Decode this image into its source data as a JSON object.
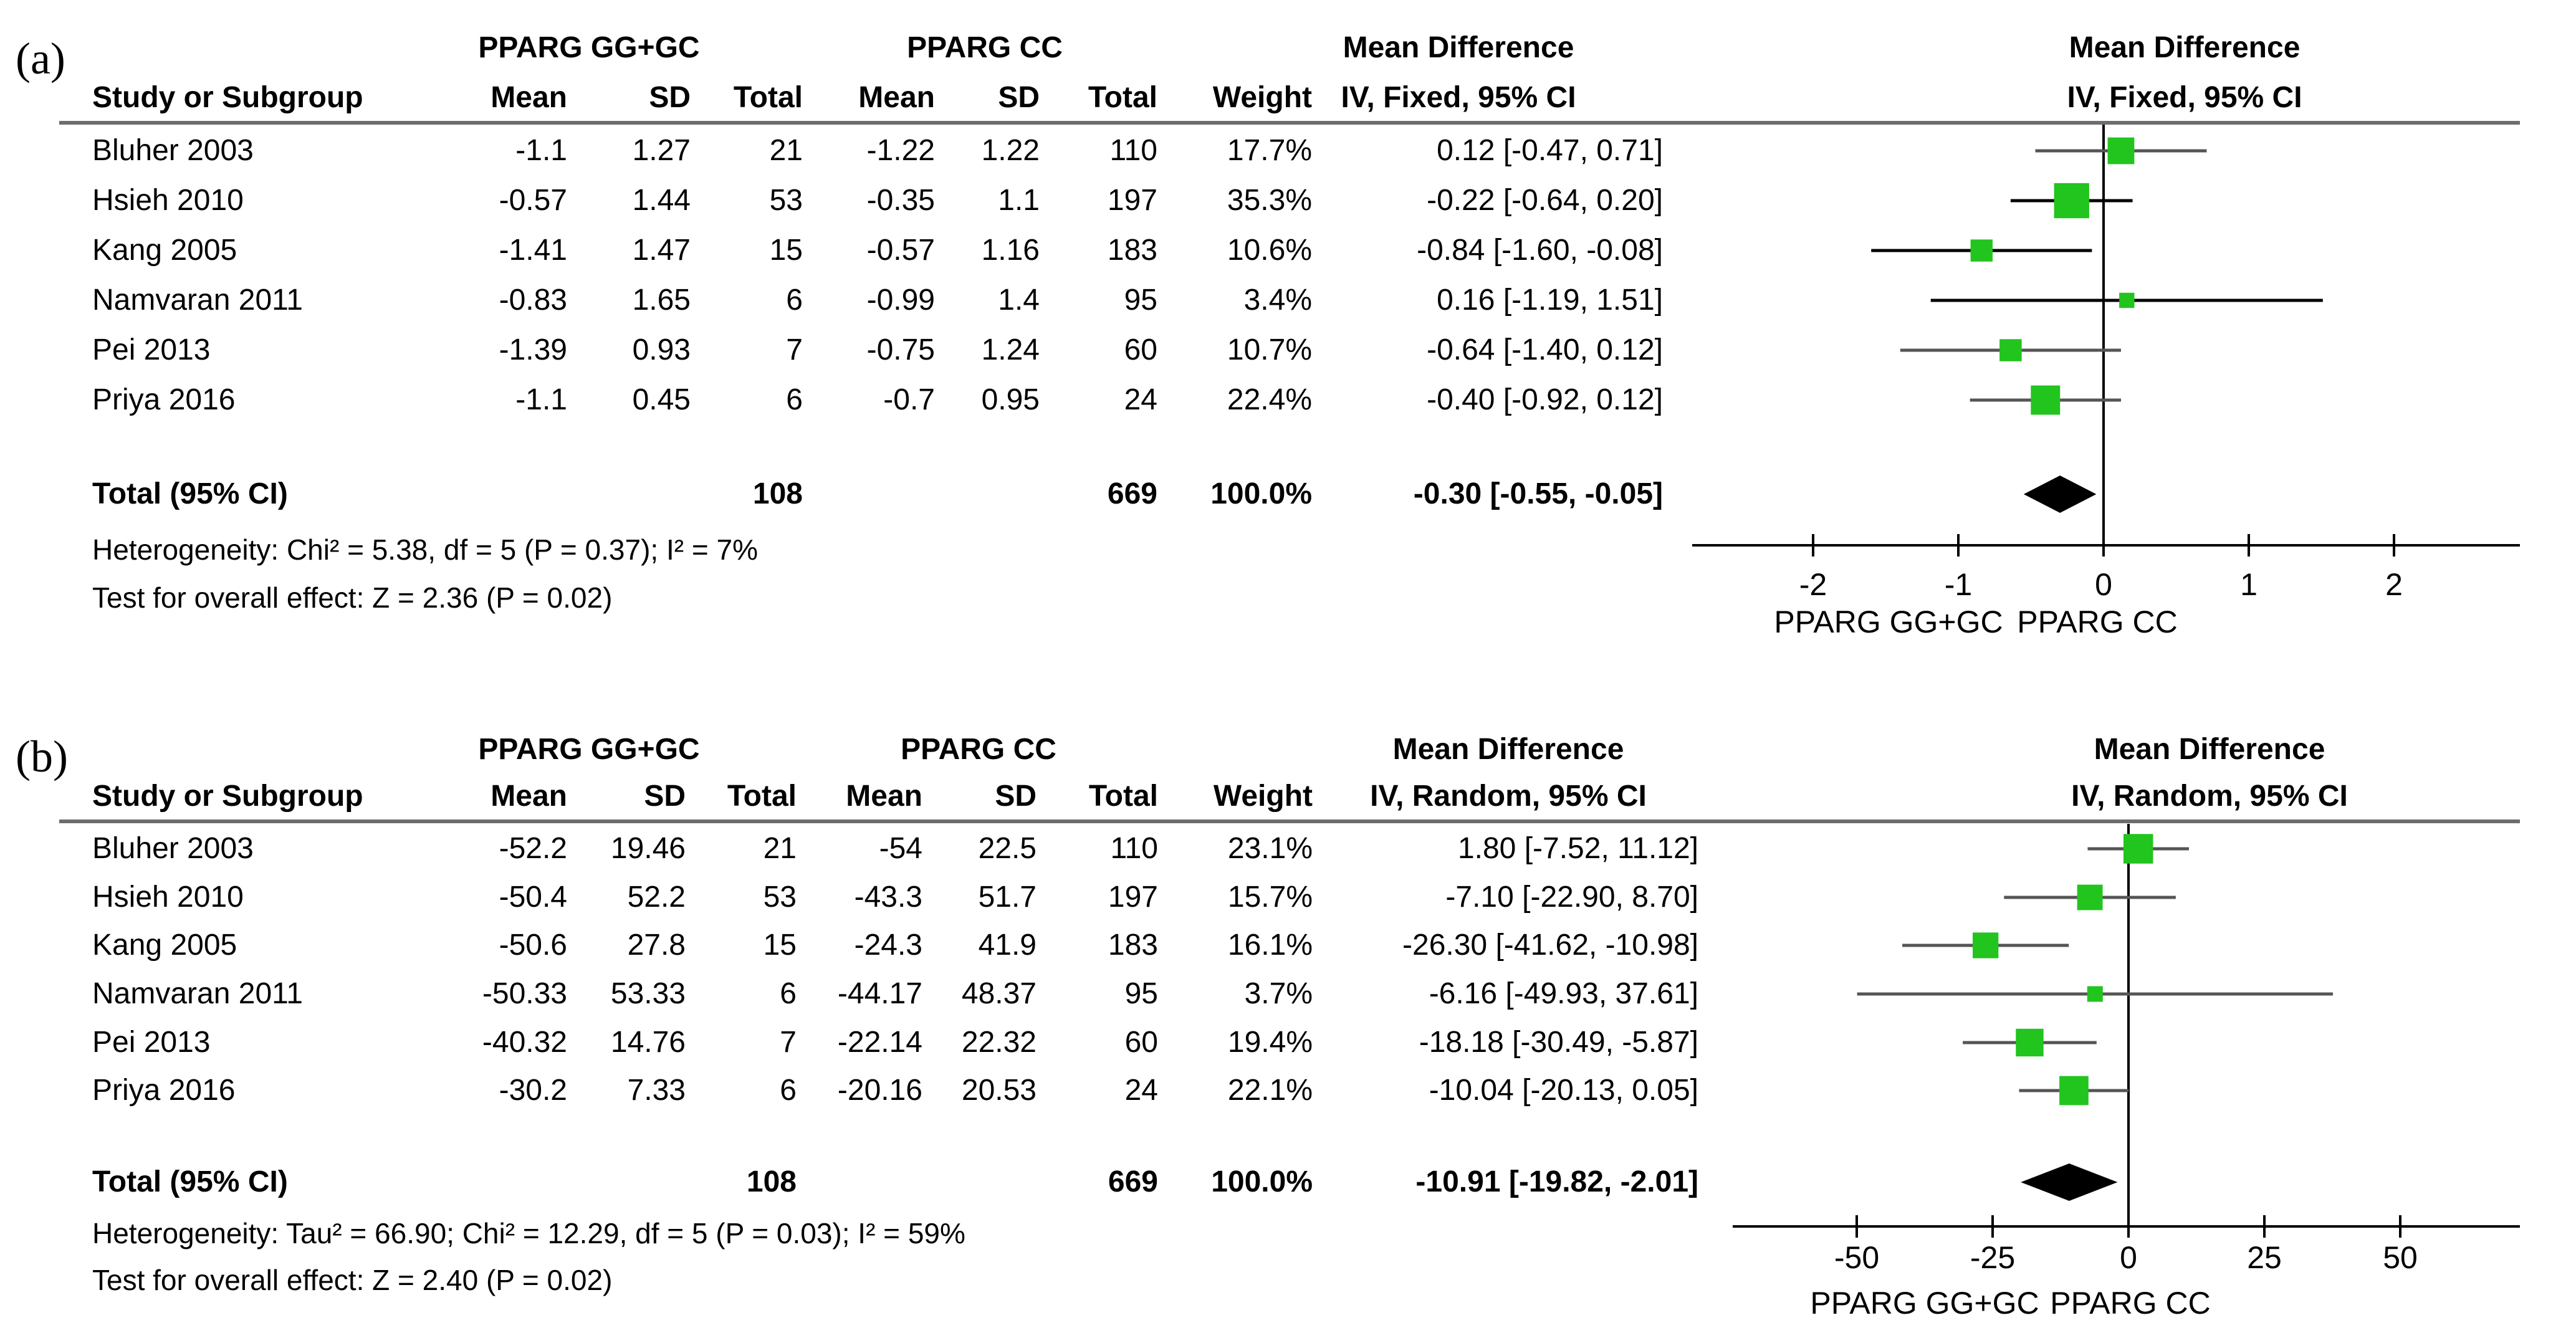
{
  "panels": [
    {
      "label": "(a)",
      "group1": "PPARG GG+GC",
      "group2": "PPARG CC",
      "headers": {
        "study": "Study or Subgroup",
        "mean": "Mean",
        "sd": "SD",
        "total": "Total",
        "weight": "Weight",
        "effect_title": "Mean Difference",
        "effect_method": "IV, Fixed, 95% CI",
        "plot_title": "Mean Difference",
        "plot_method": "IV, Fixed, 95% CI"
      },
      "studies": [
        {
          "name": "Bluher 2003",
          "m1": "-1.1",
          "sd1": "1.27",
          "n1": "21",
          "m2": "-1.22",
          "sd2": "1.22",
          "n2": "110",
          "weight": "17.7%",
          "ci": "0.12 [-0.47, 0.71]"
        },
        {
          "name": "Hsieh 2010",
          "m1": "-0.57",
          "sd1": "1.44",
          "n1": "53",
          "m2": "-0.35",
          "sd2": "1.1",
          "n2": "197",
          "weight": "35.3%",
          "ci": "-0.22 [-0.64, 0.20]"
        },
        {
          "name": "Kang 2005",
          "m1": "-1.41",
          "sd1": "1.47",
          "n1": "15",
          "m2": "-0.57",
          "sd2": "1.16",
          "n2": "183",
          "weight": "10.6%",
          "ci": "-0.84 [-1.60, -0.08]"
        },
        {
          "name": "Namvaran 2011",
          "m1": "-0.83",
          "sd1": "1.65",
          "n1": "6",
          "m2": "-0.99",
          "sd2": "1.4",
          "n2": "95",
          "weight": "3.4%",
          "ci": "0.16 [-1.19, 1.51]"
        },
        {
          "name": "Pei 2013",
          "m1": "-1.39",
          "sd1": "0.93",
          "n1": "7",
          "m2": "-0.75",
          "sd2": "1.24",
          "n2": "60",
          "weight": "10.7%",
          "ci": "-0.64 [-1.40, 0.12]"
        },
        {
          "name": "Priya 2016",
          "m1": "-1.1",
          "sd1": "0.45",
          "n1": "6",
          "m2": "-0.7",
          "sd2": "0.95",
          "n2": "24",
          "weight": "22.4%",
          "ci": "-0.40 [-0.92, 0.12]"
        }
      ],
      "total": {
        "label": "Total (95% CI)",
        "n1": "108",
        "n2": "669",
        "weight": "100.0%",
        "ci": "-0.30 [-0.55, -0.05]"
      },
      "heterogeneity": "Heterogeneity: Chi² = 5.38, df = 5 (P = 0.37); I² = 7%",
      "overall": "Test for overall effect: Z = 2.36 (P = 0.02)",
      "favours_left": "PPARG GG+GC",
      "favours_right": "PPARG CC"
    },
    {
      "label": "(b)",
      "group1": "PPARG GG+GC",
      "group2": "PPARG CC",
      "headers": {
        "study": "Study or Subgroup",
        "mean": "Mean",
        "sd": "SD",
        "total": "Total",
        "weight": "Weight",
        "effect_title": "Mean Difference",
        "effect_method": "IV, Random, 95% CI",
        "plot_title": "Mean Difference",
        "plot_method": "IV, Random, 95% CI"
      },
      "studies": [
        {
          "name": "Bluher 2003",
          "m1": "-52.2",
          "sd1": "19.46",
          "n1": "21",
          "m2": "-54",
          "sd2": "22.5",
          "n2": "110",
          "weight": "23.1%",
          "ci": "1.80 [-7.52, 11.12]"
        },
        {
          "name": "Hsieh 2010",
          "m1": "-50.4",
          "sd1": "52.2",
          "n1": "53",
          "m2": "-43.3",
          "sd2": "51.7",
          "n2": "197",
          "weight": "15.7%",
          "ci": "-7.10 [-22.90, 8.70]"
        },
        {
          "name": "Kang 2005",
          "m1": "-50.6",
          "sd1": "27.8",
          "n1": "15",
          "m2": "-24.3",
          "sd2": "41.9",
          "n2": "183",
          "weight": "16.1%",
          "ci": "-26.30 [-41.62, -10.98]"
        },
        {
          "name": "Namvaran 2011",
          "m1": "-50.33",
          "sd1": "53.33",
          "n1": "6",
          "m2": "-44.17",
          "sd2": "48.37",
          "n2": "95",
          "weight": "3.7%",
          "ci": "-6.16 [-49.93, 37.61]"
        },
        {
          "name": "Pei 2013",
          "m1": "-40.32",
          "sd1": "14.76",
          "n1": "7",
          "m2": "-22.14",
          "sd2": "22.32",
          "n2": "60",
          "weight": "19.4%",
          "ci": "-18.18 [-30.49, -5.87]"
        },
        {
          "name": "Priya 2016",
          "m1": "-30.2",
          "sd1": "7.33",
          "n1": "6",
          "m2": "-20.16",
          "sd2": "20.53",
          "n2": "24",
          "weight": "22.1%",
          "ci": "-10.04 [-20.13, 0.05]"
        }
      ],
      "total": {
        "label": "Total (95% CI)",
        "n1": "108",
        "n2": "669",
        "weight": "100.0%",
        "ci": "-10.91 [-19.82, -2.01]"
      },
      "heterogeneity": "Heterogeneity: Tau² = 66.90; Chi² = 12.29, df = 5 (P = 0.03); I² = 59%",
      "overall": "Test for overall effect: Z = 2.40 (P = 0.02)",
      "favours_left": "PPARG GG+GC",
      "favours_right": "PPARG CC"
    }
  ],
  "colors": {
    "marker": "#22c41e",
    "line_black": "#000000",
    "line_gray": "#555555",
    "rule": "#6d6d6d",
    "diamond": "#000000"
  },
  "chart_data": [
    {
      "type": "forest",
      "title": "Mean Difference IV, Fixed, 95% CI",
      "xlim": [
        -2.8,
        2.9
      ],
      "xticks": [
        -2,
        -1,
        0,
        1,
        2
      ],
      "xtick_labels": [
        "-2",
        "-1",
        "0",
        "1",
        "2"
      ],
      "favours": [
        "PPARG GG+GC",
        "PPARG CC"
      ],
      "studies": [
        {
          "name": "Bluher 2003",
          "estimate": 0.12,
          "lower": -0.47,
          "upper": 0.71,
          "weight": 17.7
        },
        {
          "name": "Hsieh 2010",
          "estimate": -0.22,
          "lower": -0.64,
          "upper": 0.2,
          "weight": 35.3
        },
        {
          "name": "Kang 2005",
          "estimate": -0.84,
          "lower": -1.6,
          "upper": -0.08,
          "weight": 10.6
        },
        {
          "name": "Namvaran 2011",
          "estimate": 0.16,
          "lower": -1.19,
          "upper": 1.51,
          "weight": 3.4
        },
        {
          "name": "Pei 2013",
          "estimate": -0.64,
          "lower": -1.4,
          "upper": 0.12,
          "weight": 10.7
        },
        {
          "name": "Priya 2016",
          "estimate": -0.4,
          "lower": -0.92,
          "upper": 0.12,
          "weight": 22.4
        }
      ],
      "pooled": {
        "estimate": -0.3,
        "lower": -0.55,
        "upper": -0.05
      }
    },
    {
      "type": "forest",
      "title": "Mean Difference IV, Random, 95% CI",
      "xlim": [
        -72,
        72
      ],
      "xticks": [
        -50,
        -25,
        0,
        25,
        50
      ],
      "xtick_labels": [
        "-50",
        "-25",
        "0",
        "25",
        "50"
      ],
      "favours": [
        "PPARG GG+GC",
        "PPARG CC"
      ],
      "studies": [
        {
          "name": "Bluher 2003",
          "estimate": 1.8,
          "lower": -7.52,
          "upper": 11.12,
          "weight": 23.1
        },
        {
          "name": "Hsieh 2010",
          "estimate": -7.1,
          "lower": -22.9,
          "upper": 8.7,
          "weight": 15.7
        },
        {
          "name": "Kang 2005",
          "estimate": -26.3,
          "lower": -41.62,
          "upper": -10.98,
          "weight": 16.1
        },
        {
          "name": "Namvaran 2011",
          "estimate": -6.16,
          "lower": -49.93,
          "upper": 37.61,
          "weight": 3.7
        },
        {
          "name": "Pei 2013",
          "estimate": -18.18,
          "lower": -30.49,
          "upper": -5.87,
          "weight": 19.4
        },
        {
          "name": "Priya 2016",
          "estimate": -10.04,
          "lower": -20.13,
          "upper": 0.05,
          "weight": 22.1
        }
      ],
      "pooled": {
        "estimate": -10.91,
        "lower": -19.82,
        "upper": -2.01
      }
    }
  ]
}
